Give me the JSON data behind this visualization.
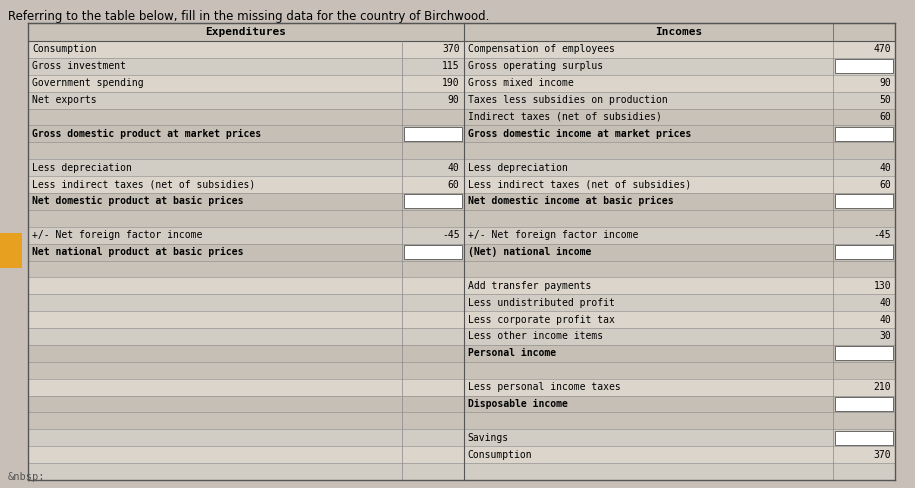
{
  "title": "Referring to the table below, fill in the missing data for the country of Birchwood.",
  "footnote": "&nbsp;",
  "page_bg": "#c8c0b8",
  "table_bg_light": "#ddd8d0",
  "table_bg_white": "#e8e4de",
  "header_bg": "#c8c4bc",
  "bold_row_bg": "#c8c4bc",
  "separator_bg": "#c0bcb4",
  "expenditures_header": "Expenditures",
  "incomes_header": "Incomes",
  "exp_rows": [
    {
      "label": "Consumption",
      "value": "370",
      "bold": false,
      "separator": false,
      "has_box": false
    },
    {
      "label": "Gross investment",
      "value": "115",
      "bold": false,
      "separator": false,
      "has_box": false
    },
    {
      "label": "Government spending",
      "value": "190",
      "bold": false,
      "separator": false,
      "has_box": false
    },
    {
      "label": "Net exports",
      "value": "90",
      "bold": false,
      "separator": false,
      "has_box": false
    },
    {
      "label": "",
      "value": "",
      "bold": false,
      "separator": true,
      "has_box": false
    },
    {
      "label": "Gross domestic product at market prices",
      "value": "",
      "bold": true,
      "separator": false,
      "has_box": true
    },
    {
      "label": "",
      "value": "",
      "bold": false,
      "separator": true,
      "has_box": false
    },
    {
      "label": "Less depreciation",
      "value": "40",
      "bold": false,
      "separator": false,
      "has_box": false
    },
    {
      "label": "Less indirect taxes (net of subsidies)",
      "value": "60",
      "bold": false,
      "separator": false,
      "has_box": false
    },
    {
      "label": "Net domestic product at basic prices",
      "value": "",
      "bold": true,
      "separator": false,
      "has_box": true
    },
    {
      "label": "",
      "value": "",
      "bold": false,
      "separator": true,
      "has_box": false
    },
    {
      "label": "+/- Net foreign factor income",
      "value": "-45",
      "bold": false,
      "separator": false,
      "has_box": false
    },
    {
      "label": "Net national product at basic prices",
      "value": "",
      "bold": true,
      "separator": false,
      "has_box": true
    },
    {
      "label": "",
      "value": "",
      "bold": false,
      "separator": false,
      "has_box": false
    },
    {
      "label": "",
      "value": "",
      "bold": false,
      "separator": false,
      "has_box": false
    },
    {
      "label": "",
      "value": "",
      "bold": false,
      "separator": false,
      "has_box": false
    },
    {
      "label": "",
      "value": "",
      "bold": false,
      "separator": false,
      "has_box": false
    },
    {
      "label": "",
      "value": "",
      "bold": false,
      "separator": false,
      "has_box": false
    },
    {
      "label": "",
      "value": "",
      "bold": false,
      "separator": false,
      "has_box": false
    },
    {
      "label": "",
      "value": "",
      "bold": false,
      "separator": false,
      "has_box": false
    },
    {
      "label": "",
      "value": "",
      "bold": false,
      "separator": false,
      "has_box": false
    },
    {
      "label": "",
      "value": "",
      "bold": false,
      "separator": false,
      "has_box": false
    },
    {
      "label": "",
      "value": "",
      "bold": false,
      "separator": false,
      "has_box": false
    },
    {
      "label": "",
      "value": "",
      "bold": false,
      "separator": false,
      "has_box": false
    },
    {
      "label": "",
      "value": "",
      "bold": false,
      "separator": false,
      "has_box": false
    },
    {
      "label": "",
      "value": "",
      "bold": false,
      "separator": false,
      "has_box": false
    }
  ],
  "inc_rows": [
    {
      "label": "Compensation of employees",
      "value": "470",
      "bold": false,
      "separator": false,
      "has_box": false
    },
    {
      "label": "Gross operating surplus",
      "value": "",
      "bold": false,
      "separator": false,
      "has_box": true
    },
    {
      "label": "Gross mixed income",
      "value": "90",
      "bold": false,
      "separator": false,
      "has_box": false
    },
    {
      "label": "Taxes less subsidies on production",
      "value": "50",
      "bold": false,
      "separator": false,
      "has_box": false
    },
    {
      "label": "Indirect taxes (net of subsidies)",
      "value": "60",
      "bold": false,
      "separator": false,
      "has_box": false
    },
    {
      "label": "Gross domestic income at market prices",
      "value": "",
      "bold": true,
      "separator": false,
      "has_box": true
    },
    {
      "label": "",
      "value": "",
      "bold": false,
      "separator": true,
      "has_box": false
    },
    {
      "label": "Less depreciation",
      "value": "40",
      "bold": false,
      "separator": false,
      "has_box": false
    },
    {
      "label": "Less indirect taxes (net of subsidies)",
      "value": "60",
      "bold": false,
      "separator": false,
      "has_box": false
    },
    {
      "label": "Net domestic income at basic prices",
      "value": "",
      "bold": true,
      "separator": false,
      "has_box": true
    },
    {
      "label": "",
      "value": "",
      "bold": false,
      "separator": true,
      "has_box": false
    },
    {
      "label": "+/- Net foreign factor income",
      "value": "-45",
      "bold": false,
      "separator": false,
      "has_box": false
    },
    {
      "label": "(Net) national income",
      "value": "",
      "bold": true,
      "separator": false,
      "has_box": true
    },
    {
      "label": "",
      "value": "",
      "bold": false,
      "separator": true,
      "has_box": false
    },
    {
      "label": "Add transfer payments",
      "value": "130",
      "bold": false,
      "separator": false,
      "has_box": false
    },
    {
      "label": "Less undistributed profit",
      "value": "40",
      "bold": false,
      "separator": false,
      "has_box": false
    },
    {
      "label": "Less corporate profit tax",
      "value": "40",
      "bold": false,
      "separator": false,
      "has_box": false
    },
    {
      "label": "Less other income items",
      "value": "30",
      "bold": false,
      "separator": false,
      "has_box": false
    },
    {
      "label": "Personal income",
      "value": "",
      "bold": true,
      "separator": false,
      "has_box": true
    },
    {
      "label": "",
      "value": "",
      "bold": false,
      "separator": true,
      "has_box": false
    },
    {
      "label": "Less personal income taxes",
      "value": "210",
      "bold": false,
      "separator": false,
      "has_box": false
    },
    {
      "label": "Disposable income",
      "value": "",
      "bold": true,
      "separator": false,
      "has_box": true
    },
    {
      "label": "",
      "value": "",
      "bold": false,
      "separator": true,
      "has_box": false
    },
    {
      "label": "Savings",
      "value": "",
      "bold": false,
      "separator": false,
      "has_box": true
    },
    {
      "label": "Consumption",
      "value": "370",
      "bold": false,
      "separator": false,
      "has_box": false
    },
    {
      "label": "",
      "value": "",
      "bold": false,
      "separator": false,
      "has_box": false
    }
  ],
  "font_size": 7.0,
  "header_font_size": 8.0
}
